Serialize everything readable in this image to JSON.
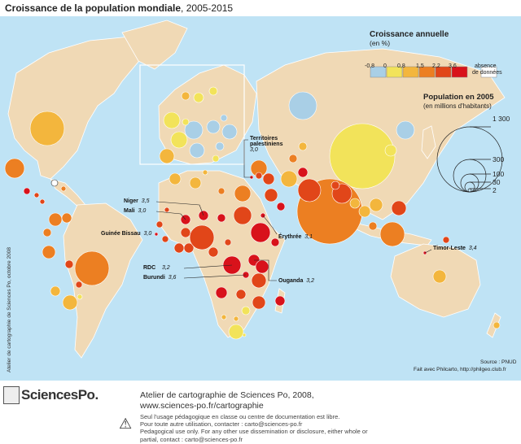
{
  "title": {
    "main": "Croissance de la population mondiale",
    "period": ", 2005-2015"
  },
  "legend": {
    "growth_title": "Croissance annuelle",
    "growth_unit": "(en %)",
    "classes": [
      {
        "label": "-0,8",
        "color": "#a9cfe6"
      },
      {
        "label": "0",
        "color": "#f2e35a"
      },
      {
        "label": "0,8",
        "color": "#f3b63d"
      },
      {
        "label": "1,5",
        "color": "#ec7f22"
      },
      {
        "label": "2,2",
        "color": "#e14619"
      },
      {
        "label": "3,6",
        "color": "#d8121b"
      }
    ],
    "no_data_line1": "absence",
    "no_data_line2": "de données",
    "pop_title": "Population en 2005",
    "pop_unit": "(en millions d'habitants)",
    "pop_values": [
      "1 300",
      "300",
      "100",
      "30",
      "2"
    ]
  },
  "annotations": [
    {
      "name": "Territoires",
      "name2": "palestiniens",
      "value": "3,0"
    },
    {
      "name": "Niger",
      "value": "3,5"
    },
    {
      "name": "Mali",
      "value": "3,0"
    },
    {
      "name": "Guinée Bissau",
      "value": "3,0"
    },
    {
      "name": "Érythrée",
      "value": "3,1"
    },
    {
      "name": "RDC",
      "value": "3,2"
    },
    {
      "name": "Burundi",
      "value": "3,6"
    },
    {
      "name": "Ouganda",
      "value": "3,2"
    },
    {
      "name": "Timor-Leste",
      "value": "3,4"
    }
  ],
  "source": "Source : PNUD",
  "made_with": "Fait avec Philcarto, http://philgeo.club.fr",
  "side_credit": "Atelier de cartographie de Sciences Po, octobre 2008",
  "footer": {
    "logo": "SciencesPo.",
    "atelier_line1": "Atelier de cartographie de Sciences Po, 2008,",
    "atelier_line2": "www.sciences-po.fr/cartographie",
    "notice_lines": [
      "Seul l'usage pédagogique en classe ou centre de documentation est libre.",
      "Pour toute autre utilisation, contacter : carto@sciences-po.fr",
      "Pedagogical use only. For any other use dissemination or disclosure, either whole or",
      "partial, contact : carto@sciences-po.fr"
    ]
  }
}
